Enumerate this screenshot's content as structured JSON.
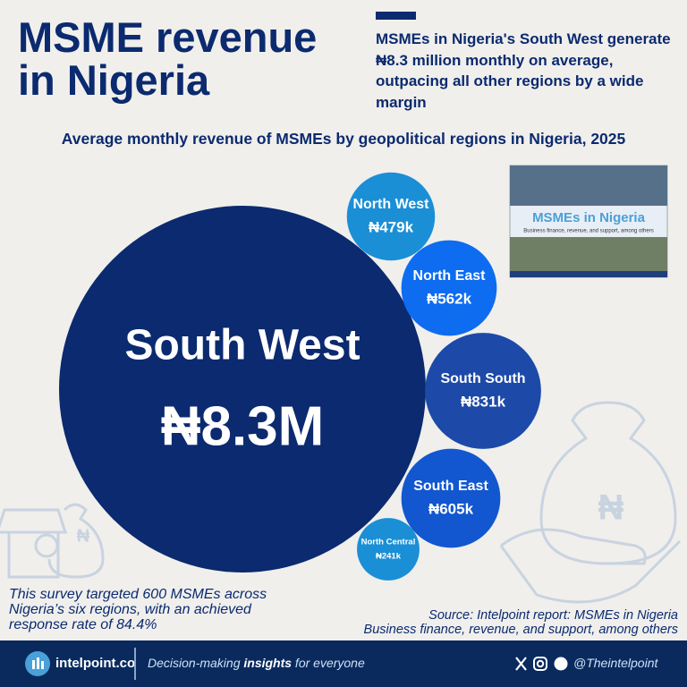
{
  "chart_data": {
    "type": "bubble",
    "title_lines": [
      "MSME revenue",
      "in Nigeria"
    ],
    "headline": "MSMEs in Nigeria's South West generate ₦8.3 million monthly on average, outpacing all other regions by a wide margin",
    "subtitle": "Average monthly revenue of MSMEs by geopolitical regions in Nigeria, 2025",
    "categories": [
      "South West",
      "North West",
      "North East",
      "South South",
      "South East",
      "North Central"
    ],
    "values": [
      8300000,
      479000,
      562000,
      831000,
      605000,
      241000
    ],
    "value_labels": [
      "₦8.3M",
      "₦479k",
      "₦562k",
      "₦831k",
      "₦605k",
      "₦241k"
    ],
    "colors": [
      "#0b2a6f",
      "#1a8fd6",
      "#0d6cf0",
      "#1d4aa8",
      "#1257d0",
      "#1a8fd6"
    ],
    "note": "This survey targeted 600 MSMEs across Nigeria’s six regions, with an achieved response rate of 84.4%",
    "source_lines": [
      "Source: Intelpoint report: MSMEs in Nigeria",
      "Business finance, revenue, and support, among others"
    ],
    "cover": {
      "title": "MSMEs in Nigeria",
      "subtitle": "Business finance, revenue, and support, among others"
    },
    "footer": {
      "site": "intelpoint.co",
      "tagline_parts": [
        "Decision-making ",
        "insights",
        " for everyone"
      ],
      "handle": "@Theintelpoint"
    }
  }
}
